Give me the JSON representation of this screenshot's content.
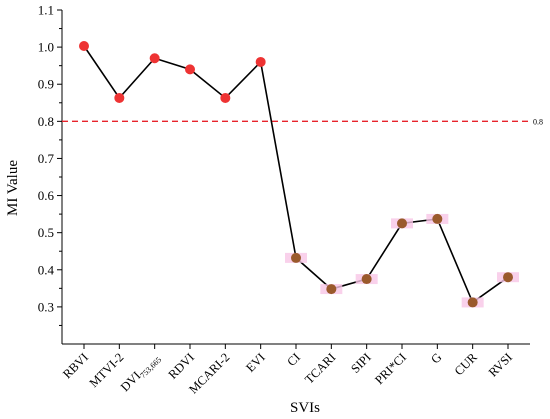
{
  "chart_data": {
    "type": "line",
    "xlabel": "SVIs",
    "ylabel": "MI Value",
    "ylim": [
      0.2,
      1.1
    ],
    "y_ticks": [
      "0.3",
      "0.4",
      "0.5",
      "0.6",
      "0.7",
      "0.8",
      "0.9",
      "1.0",
      "1.1"
    ],
    "categories": [
      {
        "main": "RBVI",
        "sub": ""
      },
      {
        "main": "MTVI-2",
        "sub": ""
      },
      {
        "main": "DVI",
        "sub": "753,665"
      },
      {
        "main": "RDVI",
        "sub": ""
      },
      {
        "main": "MCARI-2",
        "sub": ""
      },
      {
        "main": "EVI",
        "sub": ""
      },
      {
        "main": "CI",
        "sub": ""
      },
      {
        "main": "TCARI",
        "sub": ""
      },
      {
        "main": "SIPI",
        "sub": ""
      },
      {
        "main": "PRI*CI",
        "sub": ""
      },
      {
        "main": "G",
        "sub": ""
      },
      {
        "main": "CUR",
        "sub": ""
      },
      {
        "main": "RVSI",
        "sub": ""
      }
    ],
    "values": [
      1.003,
      0.863,
      0.97,
      0.94,
      0.863,
      0.96,
      0.432,
      0.348,
      0.375,
      0.525,
      0.537,
      0.312,
      0.38
    ],
    "threshold": {
      "value": 0.8,
      "label": "0.8"
    },
    "colors": {
      "line": "#000000",
      "above_marker": "#ee3333",
      "below_marker": "#9a5a2c",
      "halo": "#f7c6e6",
      "threshold": "#e8232b"
    },
    "grid": false,
    "legend": "none"
  }
}
